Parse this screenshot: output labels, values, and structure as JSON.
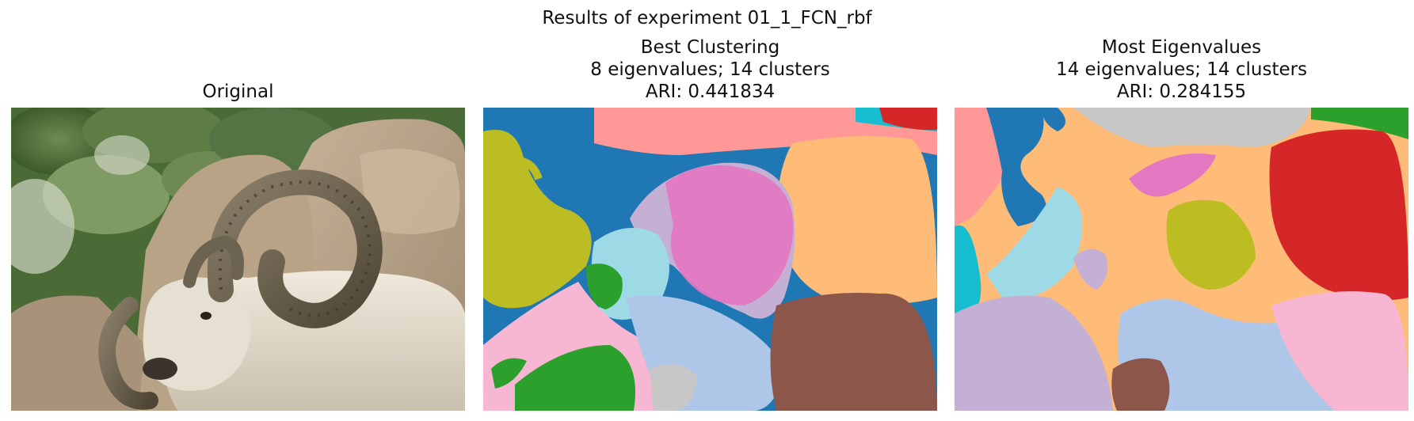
{
  "figure": {
    "suptitle": "Results of experiment 01_1_FCN_rbf"
  },
  "panels": [
    {
      "title_lines": [
        "Original"
      ]
    },
    {
      "title_lines": [
        "Best Clustering",
        "8 eigenvalues; 14 clusters",
        "ARI: 0.441834"
      ]
    },
    {
      "title_lines": [
        "Most Eigenvalues",
        "14 eigenvalues; 14 clusters",
        "ARI: 0.284155"
      ]
    }
  ],
  "colors": {
    "blue": "#1f77b4",
    "light_blue": "#aec7e8",
    "orange": "#ffbb78",
    "green": "#2ca02c",
    "red": "#d62728",
    "salmon": "#ff9896",
    "lavender": "#c5b0d5",
    "brown": "#8c564b",
    "pink": "#e377c2",
    "light_pink": "#f7b6d2",
    "gray": "#c7c7c7",
    "olive": "#bcbd22",
    "cyan": "#17becf",
    "light_cyan": "#9edae5"
  }
}
